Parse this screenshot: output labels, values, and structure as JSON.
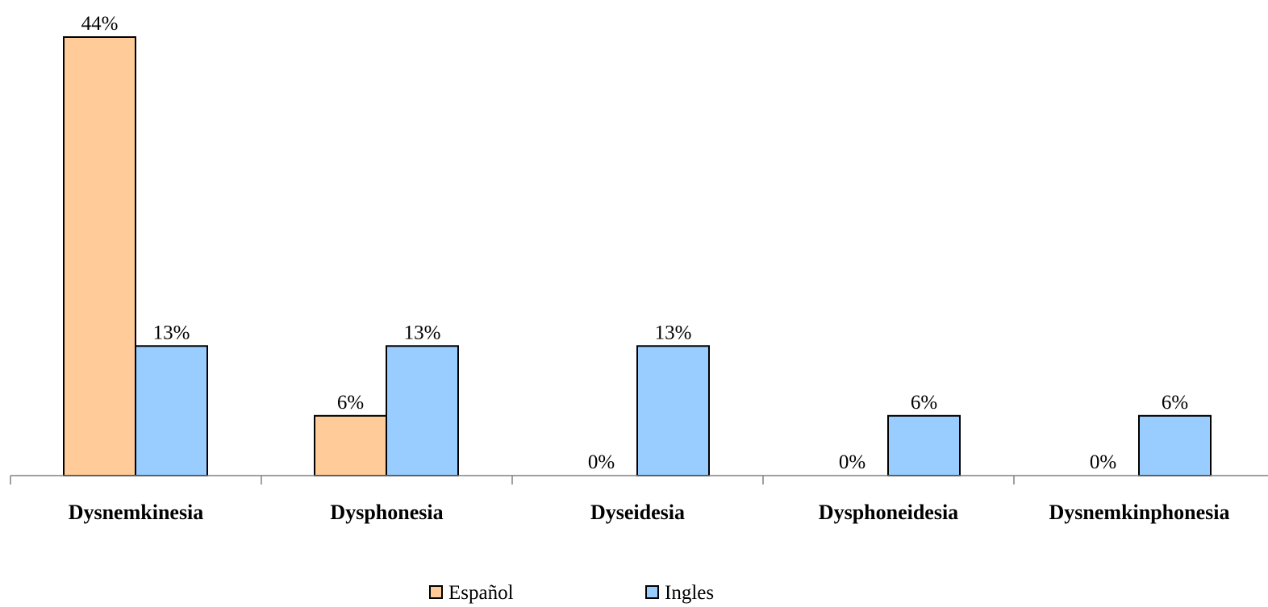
{
  "chart_data": {
    "type": "bar",
    "categories": [
      "Dysnemkinesia",
      "Dysphonesia",
      "Dyseidesia",
      "Dysphoneidesia",
      "Dysnemkinphonesia"
    ],
    "series": [
      {
        "name": "Español",
        "values": [
          44,
          6,
          0,
          0,
          0
        ],
        "labels": [
          "44%",
          "6%",
          "0%",
          "0%",
          "0%"
        ],
        "color": "#FFCC99"
      },
      {
        "name": "Ingles",
        "values": [
          13,
          13,
          13,
          6,
          6
        ],
        "labels": [
          "13%",
          "13%",
          "13%",
          "6%",
          "6%"
        ],
        "color": "#99CCFF"
      }
    ],
    "ylim": [
      0,
      44
    ],
    "grid": false,
    "legend_position": "bottom"
  }
}
